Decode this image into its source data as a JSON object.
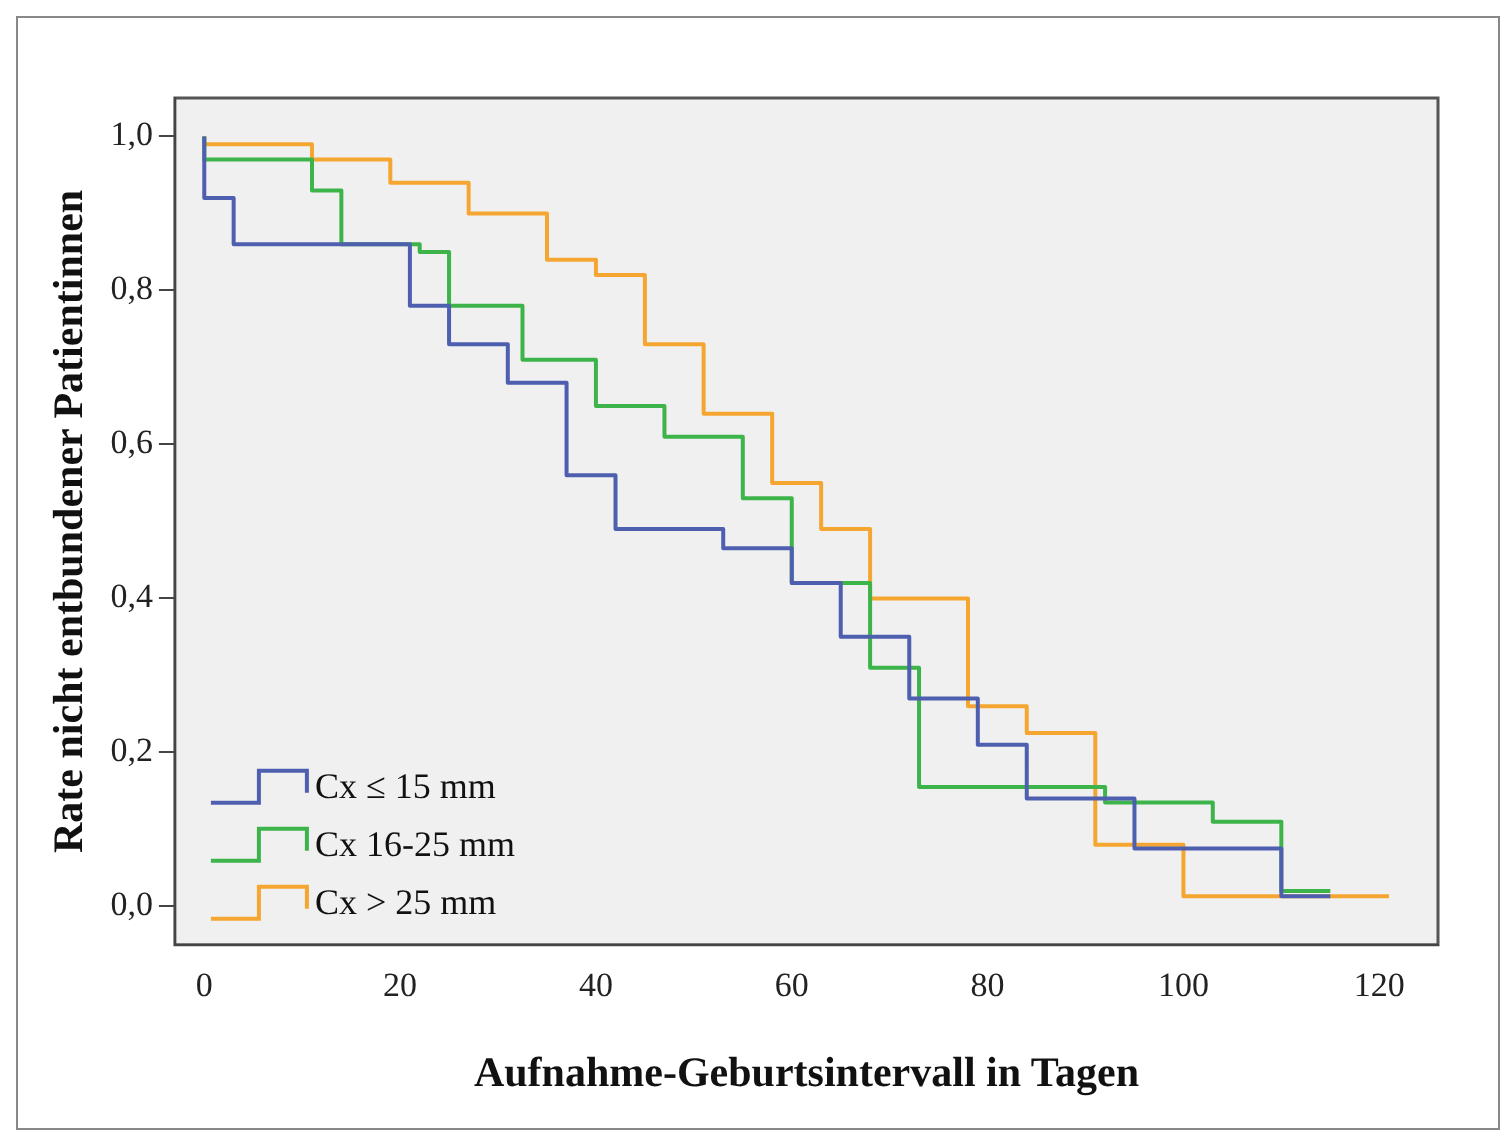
{
  "chart_data": {
    "type": "step",
    "xlabel": "Aufnahme-Geburtsintervall in Tagen",
    "ylabel": "Rate nicht entbundener Patientinnen",
    "xlim": [
      -3,
      126
    ],
    "xticks": [
      0,
      20,
      40,
      60,
      80,
      100,
      120
    ],
    "ylim": [
      -0.05,
      1.05
    ],
    "yticks": [
      {
        "value": 0,
        "label": "0,0"
      },
      {
        "value": 0.2,
        "label": "0,2"
      },
      {
        "value": 0.4,
        "label": "0,4"
      },
      {
        "value": 0.6,
        "label": "0,6"
      },
      {
        "value": 0.8,
        "label": "0,8"
      },
      {
        "value": 1,
        "label": "1,0"
      }
    ],
    "grid": false,
    "legend": "bottom left",
    "marker": "none",
    "line_style": "solid",
    "series": [
      {
        "name": "Cx ≤ 15 mm",
        "color": "#4f5fb0",
        "x": [
          0,
          3,
          14,
          21,
          25,
          31,
          37,
          42,
          53,
          60,
          65,
          72,
          79,
          84,
          95,
          102,
          110,
          115
        ],
        "values": [
          1.0,
          0.92,
          0.86,
          0.86,
          0.78,
          0.73,
          0.68,
          0.56,
          0.49,
          0.465,
          0.42,
          0.35,
          0.27,
          0.21,
          0.14,
          0.075,
          0.075,
          0.013
        ]
      },
      {
        "name": "Cx 16-25 mm",
        "color": "#3cb44a",
        "x": [
          0,
          11,
          14,
          22,
          25,
          32.5,
          40,
          47,
          55,
          60,
          68,
          73,
          92,
          97,
          103,
          110,
          115
        ],
        "values": [
          1.0,
          0.97,
          0.93,
          0.86,
          0.85,
          0.78,
          0.71,
          0.65,
          0.61,
          0.53,
          0.42,
          0.31,
          0.155,
          0.135,
          0.135,
          0.11,
          0.02
        ]
      },
      {
        "name": "Cx > 25 mm",
        "color": "#f5a630",
        "x": [
          0,
          11,
          19,
          27,
          35,
          40,
          45,
          51,
          58,
          63,
          68,
          78,
          84,
          91,
          100,
          115,
          121
        ],
        "values": [
          1.0,
          0.99,
          0.97,
          0.94,
          0.9,
          0.84,
          0.82,
          0.73,
          0.64,
          0.55,
          0.49,
          0.4,
          0.26,
          0.225,
          0.08,
          0.013,
          0.013
        ]
      }
    ]
  }
}
